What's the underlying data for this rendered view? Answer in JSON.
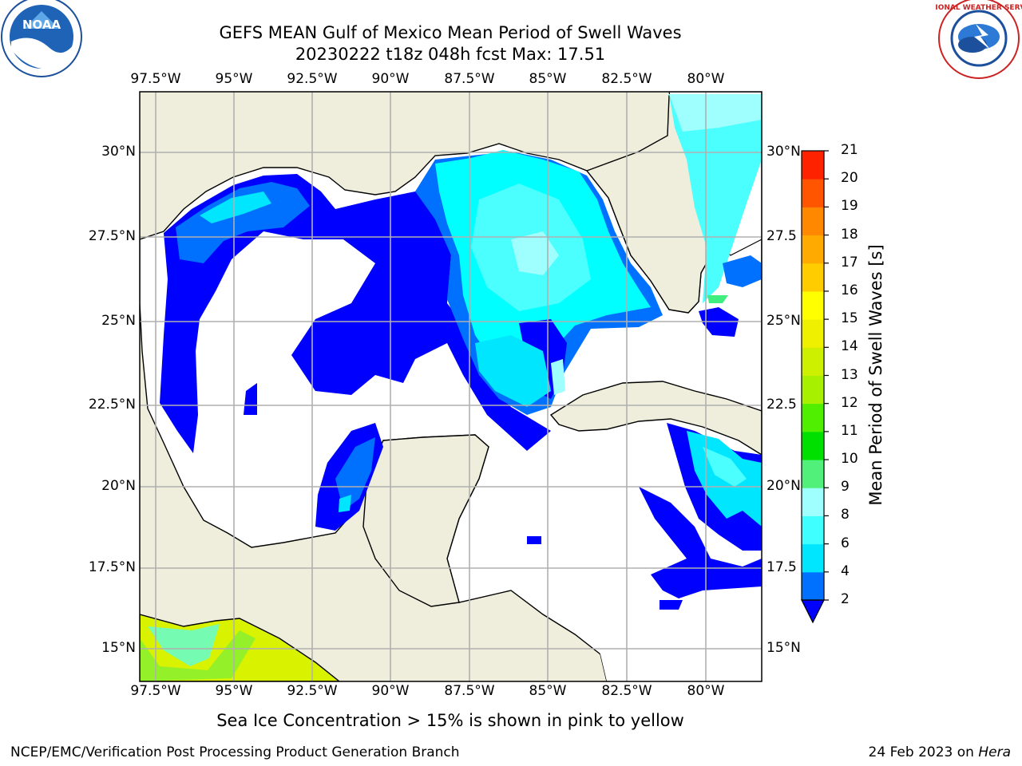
{
  "title": {
    "line1": "GEFS MEAN Gulf of Mexico Mean Period of Swell Waves",
    "line2": "20230222 t18z 048h fcst   Max: 17.51"
  },
  "logos": {
    "left_text": "NOAA",
    "right_text": "NATIONAL WEATHER SERVICE"
  },
  "map": {
    "lon_labels": [
      "97.5°W",
      "95°W",
      "92.5°W",
      "90°W",
      "87.5°W",
      "85°W",
      "82.5°W",
      "80°W"
    ],
    "lat_labels_left": [
      "30°N",
      "27.5°N",
      "25°N",
      "22.5°N",
      "20°N",
      "17.5°N",
      "15°N"
    ],
    "lat_labels_right": [
      "30°N",
      "27.5",
      "25°N",
      "22.5",
      "20°N",
      "17.5",
      "15°N"
    ],
    "colors": {
      "land": "#efeedc",
      "ocean": "#ffffff",
      "grid": "#b0b0b0"
    }
  },
  "colorbar": {
    "label": "Mean Period of Swell Waves [s]",
    "ticks": [
      "21",
      "20",
      "19",
      "18",
      "17",
      "16",
      "15",
      "14",
      "13",
      "12",
      "11",
      "10",
      "9",
      "8",
      "6",
      "4",
      "2"
    ],
    "colors": [
      "#0000ff",
      "#0070ff",
      "#00e6ff",
      "#40ffff",
      "#9fffff",
      "#50f07a",
      "#00e000",
      "#50ee00",
      "#a6f000",
      "#ccf000",
      "#eef000",
      "#ffff00",
      "#ffcc00",
      "#ffaa00",
      "#ff8800",
      "#ff5500",
      "#ff2200",
      "#ff0000"
    ]
  },
  "bottom_note": "Sea Ice Concentration > 15% is shown in pink to yellow",
  "footer": {
    "left": "NCEP/EMC/Verification Post Processing Product Generation Branch",
    "right_date": "24 Feb 2023 on ",
    "right_host": "Hera"
  }
}
